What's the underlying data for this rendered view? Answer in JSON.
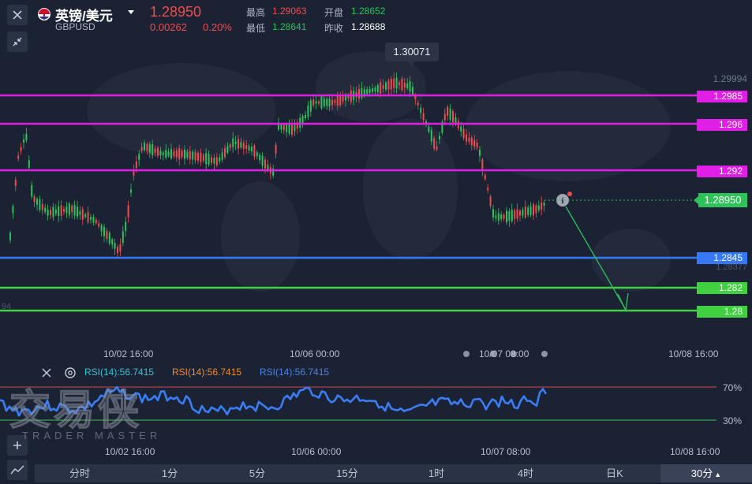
{
  "header": {
    "flag_icon": "uk-flag-icon",
    "symbol_name": "英镑/美元",
    "symbol_code": "GBPUSD",
    "price": "1.28950",
    "change": "0.00262",
    "change_pct": "0.20%",
    "high_label": "最高",
    "high_value": "1.29063",
    "open_label": "开盘",
    "open_value": "1.28652",
    "low_label": "最低",
    "low_value": "1.28641",
    "prev_close_label": "昨收",
    "prev_close_value": "1.28688"
  },
  "colors": {
    "up": "#ee4d4d",
    "down": "#2ec35a",
    "magenta": "#e11ee6",
    "blue": "#3579f6",
    "green_line": "#41d140",
    "bg": "#1b2233"
  },
  "chart": {
    "peak_label": "1.30071",
    "top_price_label": "1.29994",
    "faded_price": "1.28377",
    "left_edge_text": "94",
    "current_price": "1.28950",
    "levels": [
      {
        "label": "1.2985",
        "color": "magenta"
      },
      {
        "label": "1.296",
        "color": "magenta"
      },
      {
        "label": "1.292",
        "color": "magenta"
      },
      {
        "label": "1.2845",
        "color": "blue"
      },
      {
        "label": "1.282",
        "color": "green"
      },
      {
        "label": "1.28",
        "color": "green"
      }
    ],
    "x_labels": [
      "10/02 16:00",
      "10/06 00:00",
      "10/07 08:00",
      "10/08 16:00"
    ]
  },
  "rsi": {
    "label1": "RSI(14):56.7415",
    "label2": "RSI(14):56.7415",
    "label3": "RSI(14):56.7415",
    "level_70": "70%",
    "level_30": "30%",
    "x_labels": [
      "10/02 16:00",
      "10/06 00:00",
      "10/07 08:00",
      "10/08 16:00"
    ]
  },
  "watermark": {
    "brand": "交易侠",
    "sub": "TRADER MASTER"
  },
  "timeframes": [
    "分时",
    "1分",
    "5分",
    "15分",
    "1时",
    "4时",
    "日K",
    "30分"
  ]
}
